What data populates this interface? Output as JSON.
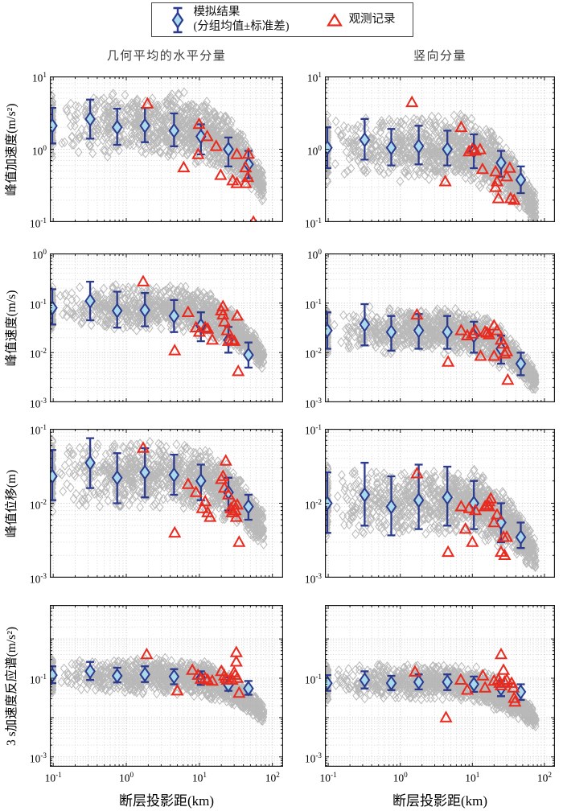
{
  "legend": {
    "sim_label_line1": "模拟结果",
    "sim_label_line2": "(分组均值±标准差)",
    "obs_label": "观测记录"
  },
  "columns": [
    {
      "title": "几何平均的水平分量"
    },
    {
      "title": "竖向分量"
    }
  ],
  "rows": [
    {
      "ylabel": "峰值加速度(m/s²)"
    },
    {
      "ylabel": "峰值速度(m/s)"
    },
    {
      "ylabel": "峰值位移(m)"
    },
    {
      "ylabel": "3 s加速度反应谱(m/s²)"
    }
  ],
  "x_axis": {
    "label": "断层投影距(km)",
    "ticks": [
      -1,
      0,
      1,
      2
    ],
    "lim_log": [
      -1.046,
      2.146
    ],
    "xlim": [
      0.09,
      140
    ]
  },
  "colors": {
    "sim_edge": "#2b3b8f",
    "sim_fill": "#a9d9ea",
    "obs": "#e92a1e",
    "cloud": "#a8a8a8",
    "grid_major": "#c3c3c3",
    "grid_minor": "#d9d9d9",
    "axis": "#1a1a1a",
    "title": "#3d3d3d"
  },
  "chart_data": [
    {
      "id": "pga-horizontal",
      "type": "scatter",
      "row": 0,
      "col": 0,
      "log_axes": true,
      "xlabel": "断层投影距(km)",
      "ylabel": "峰值加速度(m/s²)",
      "column_title": "几何平均的水平分量",
      "ylim": [
        0.1,
        10
      ],
      "ylim_log": [
        -1,
        1
      ],
      "yticks": [
        1,
        0,
        -1
      ],
      "sim_group": {
        "x": [
          0.097,
          0.32,
          0.75,
          1.8,
          4.5,
          10.5,
          25,
          47
        ],
        "mean": [
          2.1,
          2.6,
          2.0,
          2.1,
          1.8,
          1.5,
          1.0,
          0.62
        ],
        "lo": [
          1.2,
          1.4,
          1.15,
          1.25,
          1.1,
          0.85,
          0.58,
          0.4
        ],
        "hi": [
          3.7,
          4.8,
          3.6,
          3.7,
          3.1,
          2.2,
          1.45,
          0.95
        ]
      },
      "obs": [
        [
          1.95,
          4.2
        ],
        [
          6.1,
          0.56
        ],
        [
          9.6,
          0.85
        ],
        [
          9.9,
          2.2
        ],
        [
          12.8,
          1.5
        ],
        [
          17,
          1.1
        ],
        [
          19.6,
          0.44
        ],
        [
          28.6,
          0.37
        ],
        [
          32.6,
          0.85
        ],
        [
          32.6,
          0.34
        ],
        [
          43,
          0.34
        ],
        [
          43,
          0.56
        ],
        [
          46,
          0.41
        ],
        [
          47,
          0.86
        ],
        [
          55,
          0.1
        ]
      ],
      "cloud": {
        "seed": 101,
        "level_log": 0.33,
        "decay": 0.38,
        "count": 1050,
        "edge_count": 100
      }
    },
    {
      "id": "pga-vertical",
      "type": "scatter",
      "row": 0,
      "col": 1,
      "log_axes": true,
      "xlabel": "断层投影距(km)",
      "ylabel": "峰值加速度(m/s²)",
      "column_title": "竖向分量",
      "ylim": [
        0.1,
        10
      ],
      "ylim_log": [
        -1,
        1
      ],
      "yticks": [
        1,
        0,
        -1
      ],
      "sim_group": {
        "x": [
          0.097,
          0.32,
          0.75,
          1.8,
          4.5,
          10.5,
          25,
          47
        ],
        "mean": [
          1.05,
          1.35,
          1.05,
          1.1,
          1.0,
          0.95,
          0.65,
          0.38
        ],
        "lo": [
          0.55,
          0.72,
          0.6,
          0.62,
          0.6,
          0.55,
          0.42,
          0.25
        ],
        "hi": [
          2.0,
          2.6,
          1.9,
          2.1,
          1.8,
          1.6,
          0.95,
          0.58
        ]
      },
      "obs": [
        [
          1.45,
          4.4
        ],
        [
          4.2,
          0.36
        ],
        [
          7,
          2.0
        ],
        [
          9,
          0.93
        ],
        [
          10,
          1.0
        ],
        [
          11,
          0.95
        ],
        [
          12.8,
          0.99
        ],
        [
          13.8,
          0.53
        ],
        [
          21,
          0.49
        ],
        [
          21,
          0.3
        ],
        [
          22,
          0.36
        ],
        [
          23,
          0.21
        ],
        [
          30,
          0.42
        ],
        [
          33,
          0.55
        ],
        [
          34,
          0.21
        ],
        [
          38,
          0.2
        ]
      ],
      "cloud": {
        "seed": 102,
        "level_log": 0.03,
        "decay": 0.38,
        "count": 1050,
        "edge_count": 100
      }
    },
    {
      "id": "pgv-horizontal",
      "type": "scatter",
      "row": 1,
      "col": 0,
      "log_axes": true,
      "xlabel": "断层投影距(km)",
      "ylabel": "峰值速度(m/s)",
      "column_title": "几何平均的水平分量",
      "ylim": [
        0.001,
        1
      ],
      "ylim_log": [
        -3,
        0
      ],
      "yticks": [
        0,
        -1,
        -2,
        -3
      ],
      "sim_group": {
        "x": [
          0.097,
          0.32,
          0.75,
          1.8,
          4.5,
          10.5,
          25,
          47
        ],
        "mean": [
          0.08,
          0.11,
          0.07,
          0.072,
          0.055,
          0.035,
          0.018,
          0.009
        ],
        "lo": [
          0.037,
          0.045,
          0.032,
          0.034,
          0.026,
          0.017,
          0.01,
          0.005
        ],
        "hi": [
          0.19,
          0.27,
          0.17,
          0.16,
          0.115,
          0.065,
          0.033,
          0.016
        ]
      },
      "obs": [
        [
          1.7,
          0.27
        ],
        [
          4.6,
          0.011
        ],
        [
          7,
          0.065
        ],
        [
          9,
          0.032
        ],
        [
          10,
          0.026
        ],
        [
          12,
          0.032
        ],
        [
          13,
          0.03
        ],
        [
          15,
          0.018
        ],
        [
          20,
          0.07
        ],
        [
          21,
          0.085
        ],
        [
          21,
          0.058
        ],
        [
          22,
          0.042
        ],
        [
          24,
          0.028
        ],
        [
          25,
          0.017
        ],
        [
          28,
          0.018
        ],
        [
          30,
          0.017
        ],
        [
          33,
          0.055
        ],
        [
          34,
          0.0042
        ]
      ],
      "cloud": {
        "seed": 103,
        "level_log": -1.1,
        "decay": 0.46,
        "count": 1050,
        "edge_count": 100
      }
    },
    {
      "id": "pgv-vertical",
      "type": "scatter",
      "row": 1,
      "col": 1,
      "log_axes": true,
      "xlabel": "断层投影距(km)",
      "ylabel": "峰值速度(m/s)",
      "column_title": "竖向分量",
      "ylim": [
        0.001,
        1
      ],
      "ylim_log": [
        -3,
        0
      ],
      "yticks": [
        0,
        -1,
        -2,
        -3
      ],
      "sim_group": {
        "x": [
          0.097,
          0.32,
          0.75,
          1.8,
          4.5,
          10.5,
          25,
          47
        ],
        "mean": [
          0.028,
          0.037,
          0.026,
          0.028,
          0.026,
          0.022,
          0.012,
          0.006
        ],
        "lo": [
          0.012,
          0.014,
          0.011,
          0.012,
          0.012,
          0.01,
          0.006,
          0.0035
        ],
        "hi": [
          0.065,
          0.095,
          0.055,
          0.06,
          0.055,
          0.042,
          0.022,
          0.01
        ]
      },
      "obs": [
        [
          1.7,
          0.058
        ],
        [
          4.6,
          0.0065
        ],
        [
          7,
          0.028
        ],
        [
          8.5,
          0.022
        ],
        [
          10,
          0.024
        ],
        [
          11,
          0.028
        ],
        [
          13,
          0.0085
        ],
        [
          15,
          0.026
        ],
        [
          16,
          0.025
        ],
        [
          17,
          0.023
        ],
        [
          20,
          0.035
        ],
        [
          20,
          0.0085
        ],
        [
          22,
          0.028
        ],
        [
          25,
          0.018
        ],
        [
          27,
          0.015
        ],
        [
          28,
          0.0095
        ],
        [
          30,
          0.0105
        ],
        [
          31,
          0.0028
        ]
      ],
      "cloud": {
        "seed": 104,
        "level_log": -1.55,
        "decay": 0.46,
        "count": 1050,
        "edge_count": 100
      }
    },
    {
      "id": "pgd-horizontal",
      "type": "scatter",
      "row": 2,
      "col": 0,
      "log_axes": true,
      "xlabel": "断层投影距(km)",
      "ylabel": "峰值位移(m)",
      "column_title": "几何平均的水平分量",
      "ylim": [
        0.001,
        0.1
      ],
      "ylim_log": [
        -3,
        -1
      ],
      "yticks": [
        -1,
        -2,
        -3
      ],
      "sim_group": {
        "x": [
          0.097,
          0.32,
          0.75,
          1.8,
          4.5,
          10.5,
          25,
          47
        ],
        "mean": [
          0.023,
          0.035,
          0.022,
          0.026,
          0.024,
          0.02,
          0.014,
          0.009
        ],
        "lo": [
          0.011,
          0.016,
          0.01,
          0.012,
          0.013,
          0.011,
          0.008,
          0.006
        ],
        "hi": [
          0.052,
          0.075,
          0.047,
          0.055,
          0.045,
          0.033,
          0.022,
          0.013
        ]
      },
      "obs": [
        [
          1.7,
          0.055
        ],
        [
          4.6,
          0.004
        ],
        [
          7,
          0.018
        ],
        [
          9,
          0.014
        ],
        [
          11,
          0.0085
        ],
        [
          12,
          0.0105
        ],
        [
          13,
          0.0075
        ],
        [
          14,
          0.0065
        ],
        [
          20,
          0.021
        ],
        [
          21,
          0.023
        ],
        [
          22,
          0.016
        ],
        [
          23,
          0.037
        ],
        [
          25,
          0.013
        ],
        [
          27,
          0.0085
        ],
        [
          28,
          0.0075
        ],
        [
          30,
          0.0095
        ],
        [
          31,
          0.008
        ],
        [
          32,
          0.0065
        ],
        [
          33,
          0.0095
        ],
        [
          35,
          0.003
        ]
      ],
      "cloud": {
        "seed": 105,
        "level_log": -1.62,
        "decay": 0.33,
        "count": 1050,
        "edge_count": 100
      }
    },
    {
      "id": "pgd-vertical",
      "type": "scatter",
      "row": 2,
      "col": 1,
      "log_axes": true,
      "xlabel": "断层投影距(km)",
      "ylabel": "峰值位移(m)",
      "column_title": "竖向分量",
      "ylim": [
        0.001,
        0.1
      ],
      "ylim_log": [
        -3,
        -1
      ],
      "yticks": [
        -1,
        -2,
        -3
      ],
      "sim_group": {
        "x": [
          0.097,
          0.32,
          0.75,
          1.8,
          4.5,
          10.5,
          25,
          47
        ],
        "mean": [
          0.01,
          0.013,
          0.009,
          0.011,
          0.012,
          0.01,
          0.0055,
          0.0035
        ],
        "lo": [
          0.004,
          0.005,
          0.0037,
          0.0045,
          0.005,
          0.0045,
          0.003,
          0.0025
        ],
        "hi": [
          0.026,
          0.035,
          0.023,
          0.033,
          0.031,
          0.02,
          0.01,
          0.0055
        ]
      },
      "obs": [
        [
          1.7,
          0.025
        ],
        [
          4.6,
          0.0022
        ],
        [
          7,
          0.009
        ],
        [
          8,
          0.0045
        ],
        [
          9,
          0.0085
        ],
        [
          10,
          0.003
        ],
        [
          11,
          0.008
        ],
        [
          15,
          0.009
        ],
        [
          16,
          0.0095
        ],
        [
          17,
          0.0105
        ],
        [
          17,
          0.009
        ],
        [
          18,
          0.0115
        ],
        [
          20,
          0.0055
        ],
        [
          22,
          0.007
        ],
        [
          25,
          0.0022
        ],
        [
          27,
          0.0035
        ],
        [
          28,
          0.002
        ],
        [
          30,
          0.0035
        ]
      ],
      "cloud": {
        "seed": 106,
        "level_log": -1.96,
        "decay": 0.33,
        "count": 1050,
        "edge_count": 100
      }
    },
    {
      "id": "sa3s-horizontal",
      "type": "scatter",
      "row": 3,
      "col": 0,
      "log_axes": true,
      "xlabel": "断层投影距(km)",
      "ylabel": "3 s加速度反应谱(m/s²)",
      "column_title": "几何平均的水平分量",
      "ylim": [
        0.00056,
        7.2
      ],
      "ylim_log": [
        -3.25,
        0.86
      ],
      "yticks": [
        -1,
        -3
      ],
      "sim_group": {
        "x": [
          0.097,
          0.32,
          0.75,
          1.8,
          4.5,
          10.5,
          25,
          47
        ],
        "mean": [
          0.12,
          0.15,
          0.115,
          0.125,
          0.11,
          0.1,
          0.068,
          0.055
        ],
        "lo": [
          0.075,
          0.09,
          0.078,
          0.08,
          0.07,
          0.068,
          0.048,
          0.038
        ],
        "hi": [
          0.2,
          0.26,
          0.185,
          0.2,
          0.17,
          0.15,
          0.105,
          0.085
        ]
      },
      "obs": [
        [
          1.9,
          0.4
        ],
        [
          5,
          0.048
        ],
        [
          8,
          0.16
        ],
        [
          9.6,
          0.12
        ],
        [
          10.5,
          0.095
        ],
        [
          12,
          0.1
        ],
        [
          13,
          0.09
        ],
        [
          15,
          0.085
        ],
        [
          20,
          0.15
        ],
        [
          32,
          0.45
        ],
        [
          32,
          0.26
        ],
        [
          22,
          0.115
        ],
        [
          23,
          0.1
        ],
        [
          24,
          0.09
        ],
        [
          28,
          0.09
        ],
        [
          30,
          0.14
        ],
        [
          31,
          0.12
        ],
        [
          33,
          0.1
        ],
        [
          35,
          0.042
        ]
      ],
      "cloud": {
        "seed": 107,
        "level_log": -0.94,
        "decay": 0.43,
        "count": 1050,
        "edge_count": 100
      }
    },
    {
      "id": "sa3s-vertical",
      "type": "scatter",
      "row": 3,
      "col": 1,
      "log_axes": true,
      "xlabel": "断层投影距(km)",
      "ylabel": "3 s加速度反应谱(m/s²)",
      "column_title": "竖向分量",
      "ylim": [
        0.00056,
        7.2
      ],
      "ylim_log": [
        -3.25,
        0.86
      ],
      "yticks": [
        -1,
        -3
      ],
      "sim_group": {
        "x": [
          0.097,
          0.32,
          0.75,
          1.8,
          4.5,
          10.5,
          25,
          47
        ],
        "mean": [
          0.075,
          0.09,
          0.075,
          0.08,
          0.08,
          0.07,
          0.055,
          0.045
        ],
        "lo": [
          0.048,
          0.055,
          0.05,
          0.052,
          0.05,
          0.045,
          0.035,
          0.028
        ],
        "hi": [
          0.12,
          0.15,
          0.115,
          0.125,
          0.125,
          0.11,
          0.085,
          0.07
        ]
      },
      "obs": [
        [
          1.6,
          0.145
        ],
        [
          4.3,
          0.01
        ],
        [
          6.9,
          0.09
        ],
        [
          8.5,
          0.05
        ],
        [
          14,
          0.115
        ],
        [
          15,
          0.057
        ],
        [
          20,
          0.085
        ],
        [
          23,
          0.091
        ],
        [
          24,
          0.075
        ],
        [
          25,
          0.065
        ],
        [
          25,
          0.4
        ],
        [
          27,
          0.16
        ],
        [
          28,
          0.08
        ],
        [
          30,
          0.09
        ],
        [
          35,
          0.075
        ],
        [
          37,
          0.057
        ],
        [
          38,
          0.031
        ],
        [
          39,
          0.025
        ]
      ],
      "cloud": {
        "seed": 108,
        "level_log": -1.1,
        "decay": 0.43,
        "count": 1050,
        "edge_count": 100
      }
    }
  ]
}
